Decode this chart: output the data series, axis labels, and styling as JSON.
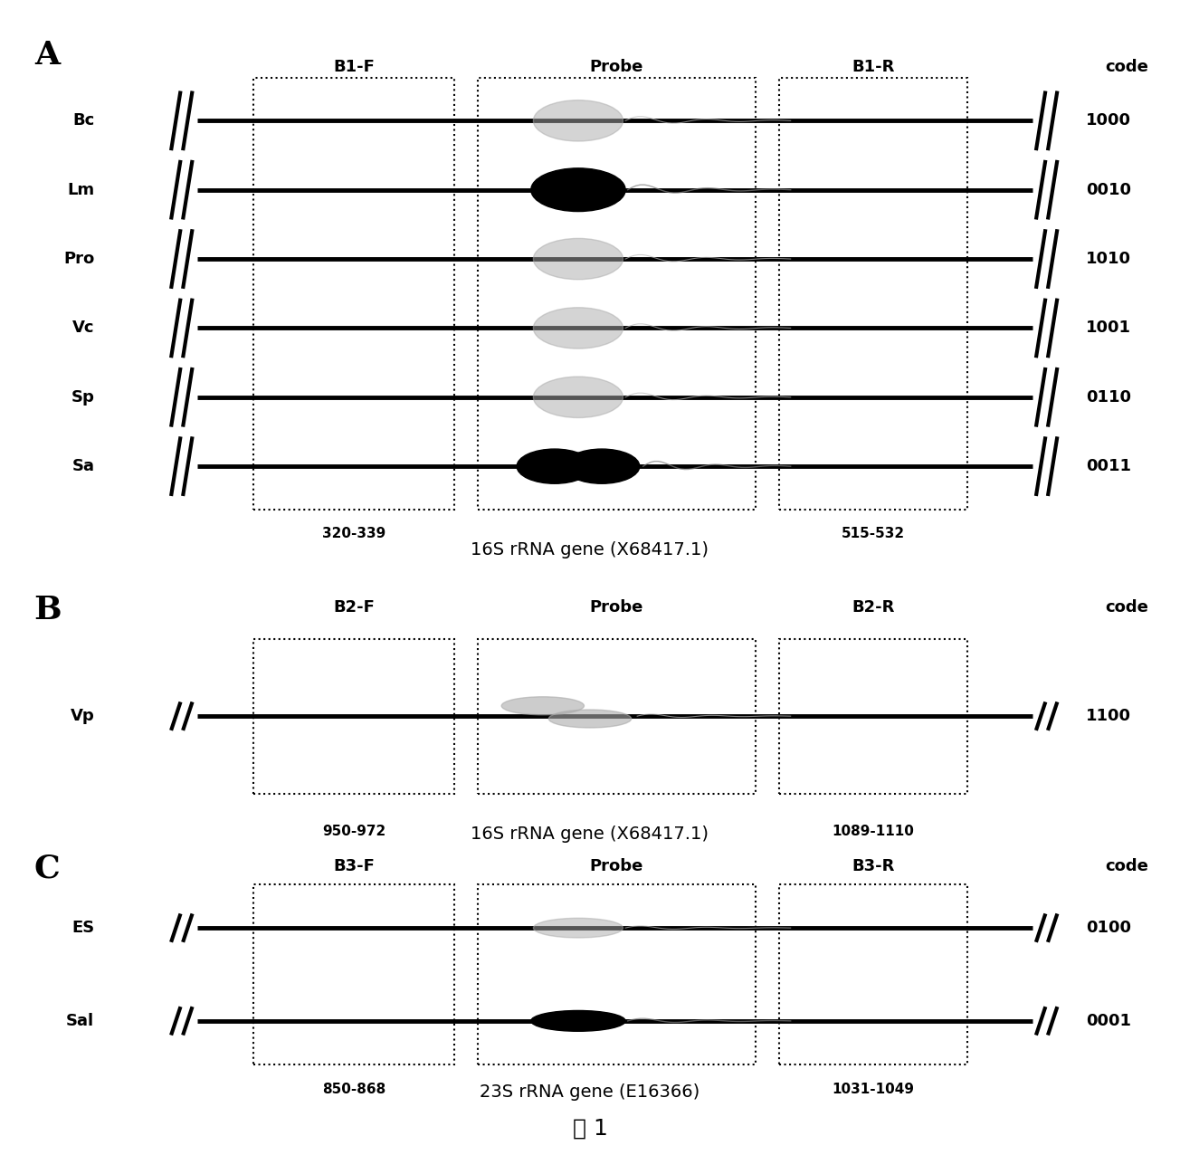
{
  "panel_A": {
    "label": "A",
    "rows": [
      {
        "name": "Bc",
        "code": "1000",
        "probe_style": "grey_open"
      },
      {
        "name": "Lm",
        "code": "0010",
        "probe_style": "black_circle"
      },
      {
        "name": "Pro",
        "code": "1010",
        "probe_style": "grey_open"
      },
      {
        "name": "Vc",
        "code": "1001",
        "probe_style": "grey_open"
      },
      {
        "name": "Sp",
        "code": "0110",
        "probe_style": "grey_open"
      },
      {
        "name": "Sa",
        "code": "0011",
        "probe_style": "black_double"
      }
    ],
    "forward_label": "B1-F",
    "probe_label": "Probe",
    "reverse_label": "B1-R",
    "forward_range": "320-339",
    "reverse_range": "515-532",
    "gene_label": "16S rRNA gene (X68417.1)"
  },
  "panel_B": {
    "label": "B",
    "rows": [
      {
        "name": "Vp",
        "code": "1100",
        "probe_style": "grey_double"
      }
    ],
    "forward_label": "B2-F",
    "probe_label": "Probe",
    "reverse_label": "B2-R",
    "forward_range": "950-972",
    "reverse_range": "1089-1110",
    "gene_label": "16S rRNA gene (X68417.1)"
  },
  "panel_C": {
    "label": "C",
    "rows": [
      {
        "name": "ES",
        "code": "0100",
        "probe_style": "grey_open"
      },
      {
        "name": "Sal",
        "code": "0001",
        "probe_style": "black_circle"
      }
    ],
    "forward_label": "B3-F",
    "probe_label": "Probe",
    "reverse_label": "B3-R",
    "forward_range": "850-868",
    "reverse_range": "1031-1049",
    "gene_label": "23S rRNA gene (E16366)"
  },
  "figure_label": "图 1",
  "bg_color": "#ffffff"
}
